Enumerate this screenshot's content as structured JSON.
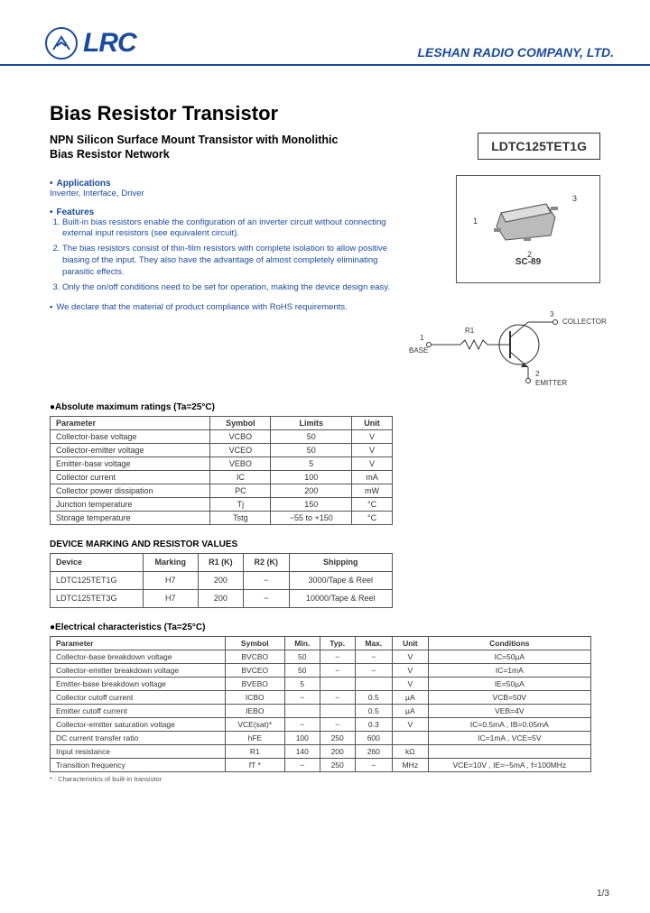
{
  "header": {
    "logo_text": "LRC",
    "company": "LESHAN RADIO COMPANY, LTD."
  },
  "titles": {
    "main": "Bias Resistor Transistor",
    "sub": "NPN Silicon Surface Mount Transistor with Monolithic Bias Resistor Network",
    "part": "LDTC125TET1G"
  },
  "applications": {
    "head": "Applications",
    "text": "Inverter, Interface, Driver"
  },
  "features": {
    "head": "Features",
    "items": [
      "Built-in bias resistors enable the configuration of an inverter circuit without connecting external input resistors (see equivalent circuit).",
      "The bias resistors consist of thin-film resistors with complete isolation to allow positive biasing of the input. They also have the advantage of almost completely eliminating parasitic effects.",
      "Only the on/off conditions need to be set for operation, making the device design easy."
    ]
  },
  "rohs": "We declare that the material of product compliance with RoHS requirements.",
  "package": {
    "label": "SC-89",
    "p1": "1",
    "p2": "2",
    "p3": "3"
  },
  "schematic": {
    "base": "BASE",
    "collector": "COLLECTOR",
    "emitter": "EMITTER",
    "r1": "R1",
    "p1": "1",
    "p2": "2",
    "p3": "3"
  },
  "abs_table": {
    "title": "●Absolute maximum ratings (Ta=25°C)",
    "headers": [
      "Parameter",
      "Symbol",
      "Limits",
      "Unit"
    ],
    "rows": [
      [
        "Collector-base voltage",
        "VCBO",
        "50",
        "V"
      ],
      [
        "Collector-emitter voltage",
        "VCEO",
        "50",
        "V"
      ],
      [
        "Emitter-base voltage",
        "VEBO",
        "5",
        "V"
      ],
      [
        "Collector current",
        "IC",
        "100",
        "mA"
      ],
      [
        "Collector power dissipation",
        "PC",
        "200",
        "mW"
      ],
      [
        "Junction temperature",
        "Tj",
        "150",
        "°C"
      ],
      [
        "Storage temperature",
        "Tstg",
        "−55 to +150",
        "°C"
      ]
    ]
  },
  "dev_table": {
    "title": "DEVICE MARKING AND RESISTOR VALUES",
    "headers": [
      "Device",
      "Marking",
      "R1 (K)",
      "R2 (K)",
      "Shipping"
    ],
    "rows": [
      [
        "LDTC125TET1G",
        "H7",
        "200",
        "−",
        "3000/Tape & Reel"
      ],
      [
        "LDTC125TET3G",
        "H7",
        "200",
        "−",
        "10000/Tape & Reel"
      ]
    ]
  },
  "elec_table": {
    "title": "●Electrical characteristics (Ta=25°C)",
    "headers": [
      "Parameter",
      "Symbol",
      "Min.",
      "Typ.",
      "Max.",
      "Unit",
      "Conditions"
    ],
    "rows": [
      [
        "Collector-base breakdown voltage",
        "BVCBO",
        "50",
        "−",
        "−",
        "V",
        "IC=50µA"
      ],
      [
        "Collector-emitter breakdown voltage",
        "BVCEO",
        "50",
        "−",
        "−",
        "V",
        "IC=1mA"
      ],
      [
        "Emitter-base breakdown voltage",
        "BVEBO",
        "5",
        "",
        "",
        "V",
        "IE=50µA"
      ],
      [
        "Collector cutoff current",
        "ICBO",
        "−",
        "−",
        "0.5",
        "µA",
        "VCB=50V"
      ],
      [
        "Emitter cutoff current",
        "IEBO",
        "",
        "",
        "0.5",
        "µA",
        "VEB=4V"
      ],
      [
        "Collector-emitter saturation voltage",
        "VCE(sat)*",
        "−",
        "−",
        "0.3",
        "V",
        "IC=0.5mA , IB=0.05mA"
      ],
      [
        "DC current transfer ratio",
        "hFE",
        "100",
        "250",
        "600",
        "",
        "IC=1mA , VCE=5V"
      ],
      [
        "Input resistance",
        "R1",
        "140",
        "200",
        "260",
        "kΩ",
        ""
      ],
      [
        "Transition frequency",
        "fT *",
        "−",
        "250",
        "−",
        "MHz",
        "VCE=10V , IE=−5mA , f=100MHz"
      ]
    ]
  },
  "footnote": "* : Characteristics of built-in transistor",
  "page": "1/3"
}
